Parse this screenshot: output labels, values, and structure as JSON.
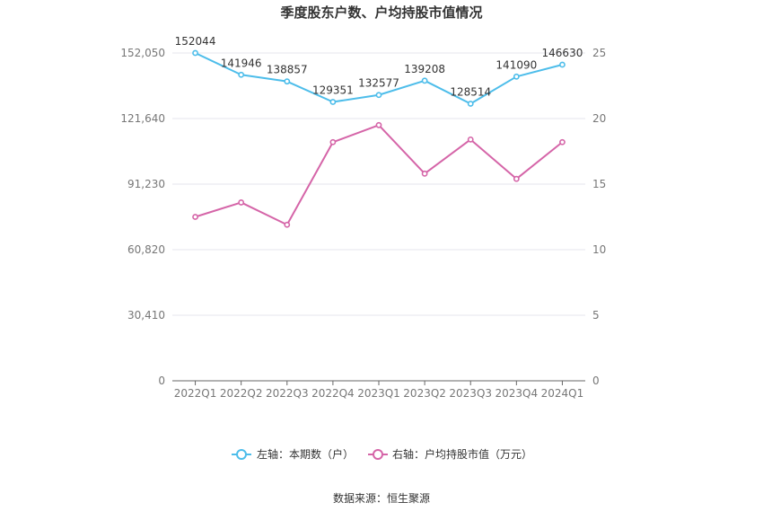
{
  "chart_data": {
    "type": "line",
    "title": "季度股东户数、户均持股市值情况",
    "categories": [
      "2022Q1",
      "2022Q2",
      "2022Q3",
      "2022Q4",
      "2023Q1",
      "2023Q2",
      "2023Q3",
      "2023Q4",
      "2024Q1"
    ],
    "left_axis": {
      "ticks": [
        "0",
        "30,410",
        "60,820",
        "91,230",
        "121,640",
        "152,050"
      ],
      "min": 0,
      "max": 152050
    },
    "right_axis": {
      "ticks": [
        "0",
        "5",
        "10",
        "15",
        "20",
        "25"
      ],
      "min": 0,
      "max": 25
    },
    "series": [
      {
        "name": "左轴：本期数（户）",
        "axis": "left",
        "color": "#4dbdea",
        "values": [
          152044,
          141946,
          138857,
          129351,
          132577,
          139208,
          128514,
          141090,
          146630
        ],
        "labels": [
          "152044",
          "141946",
          "138857",
          "129351",
          "132577",
          "139208",
          "128514",
          "141090",
          "146630"
        ]
      },
      {
        "name": "右轴：户均持股市值（万元）",
        "axis": "right",
        "color": "#d565a8",
        "values": [
          12.5,
          13.6,
          11.9,
          18.2,
          19.5,
          15.8,
          18.4,
          15.4,
          18.2
        ]
      }
    ],
    "grid": true,
    "legend_position": "bottom",
    "source": "数据来源：恒生聚源"
  }
}
